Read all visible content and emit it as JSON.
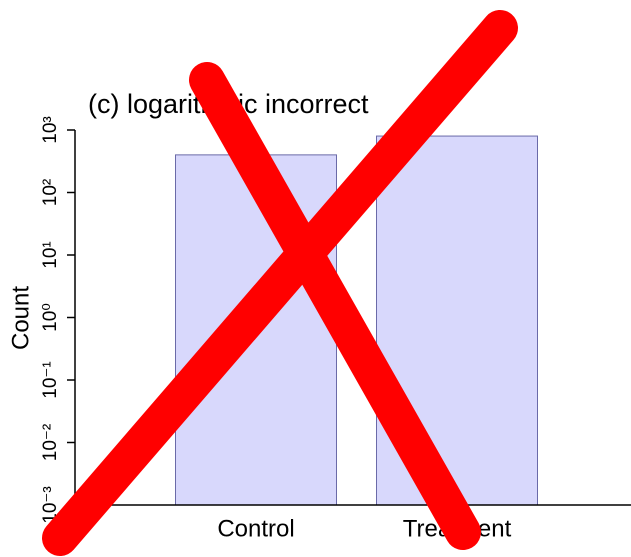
{
  "chart_data": {
    "type": "bar",
    "title": "(c) logarithmic incorrect",
    "y_label": "Count",
    "categories": [
      "Control",
      "Treatment"
    ],
    "values": [
      400,
      800
    ],
    "color": "#d8d8fc",
    "edge_color": "#6a6aa8",
    "ylim": [
      0.001,
      1000
    ],
    "log_scale": true,
    "yticks": [
      {
        "value": 0.001,
        "label": "10⁻³"
      },
      {
        "value": 0.01,
        "label": "10⁻²"
      },
      {
        "value": 0.1,
        "label": "10⁻¹"
      },
      {
        "value": 1,
        "label": "10⁰"
      },
      {
        "value": 10,
        "label": "10¹"
      },
      {
        "value": 100,
        "label": "10²"
      },
      {
        "value": 1000,
        "label": "10³"
      }
    ]
  }
}
